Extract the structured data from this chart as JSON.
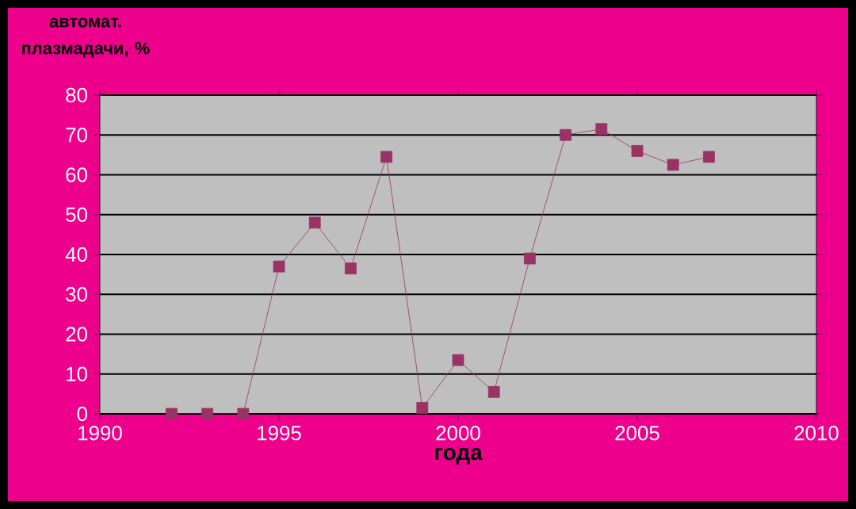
{
  "chart_data": {
    "type": "line",
    "xlabel": "года",
    "ylabel": "автомат. плазмадачи, %",
    "x": [
      1992,
      1993,
      1994,
      1995,
      1996,
      1997,
      1998,
      1999,
      2000,
      2001,
      2002,
      2003,
      2004,
      2005,
      2006,
      2007
    ],
    "series": [
      {
        "color": "#993366",
        "values": [
          0,
          0,
          0,
          37,
          48,
          36.5,
          64.5,
          1.5,
          13.5,
          5.5,
          39,
          70,
          71.5,
          66,
          62.5,
          64.5
        ]
      }
    ],
    "xlim": [
      1990,
      2010
    ],
    "xticks": [
      1990,
      1995,
      2000,
      2005,
      2010
    ],
    "ylim": [
      0,
      80
    ],
    "yticks": [
      0,
      10,
      20,
      30,
      40,
      50,
      60,
      70,
      80
    ],
    "grid": "y",
    "marker": "square",
    "line_style": "solid"
  }
}
